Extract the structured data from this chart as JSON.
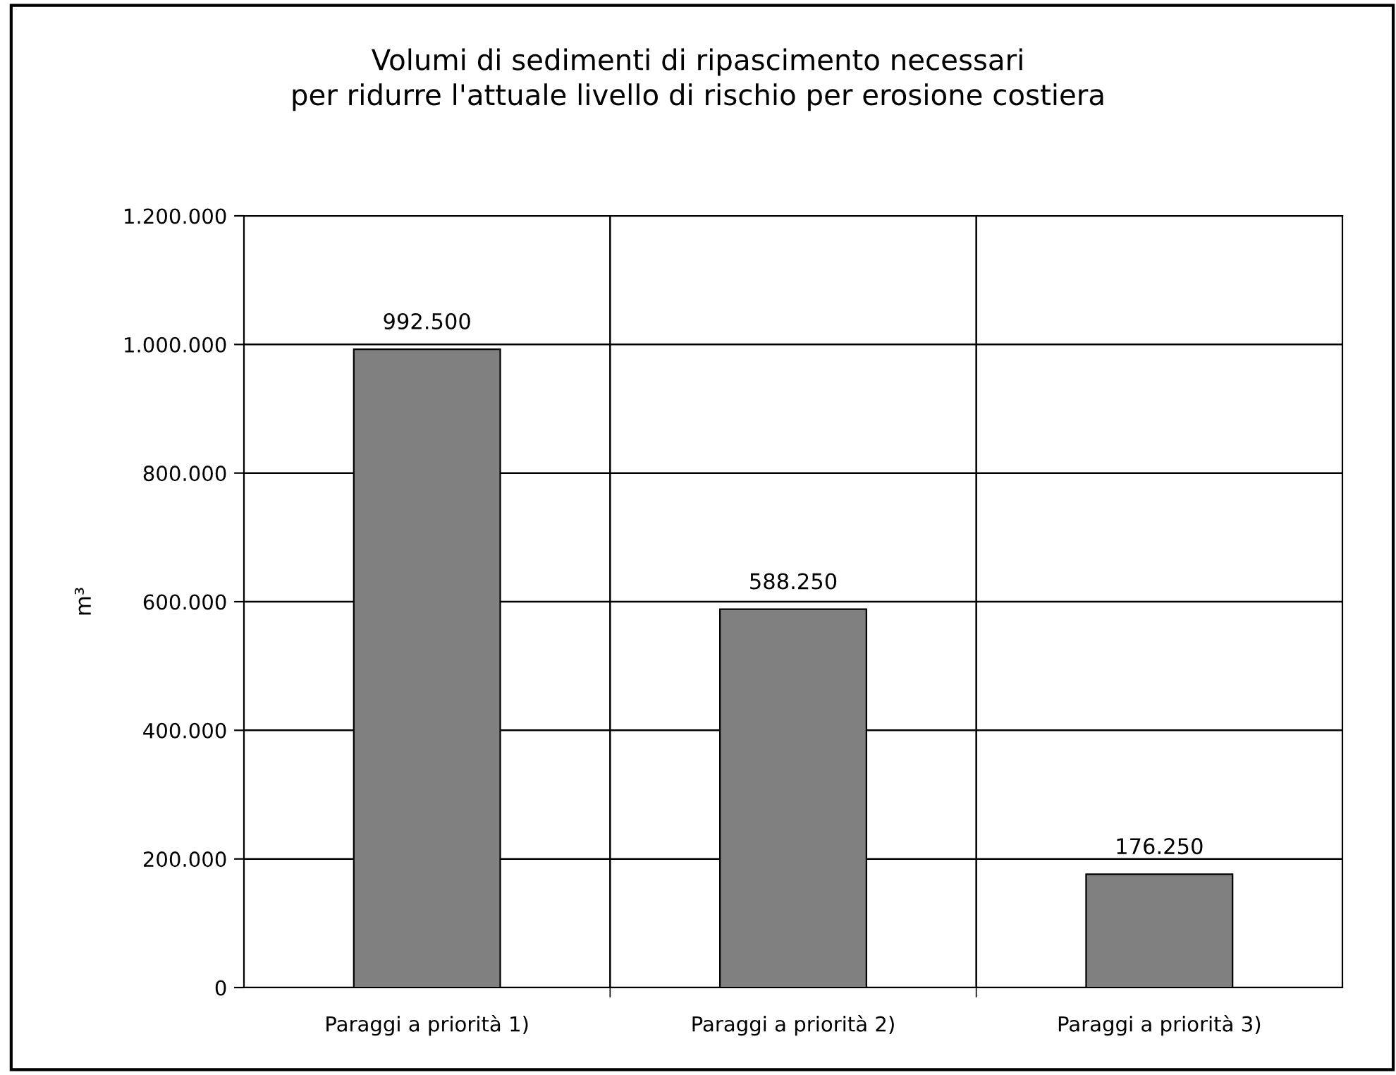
{
  "chart_data": {
    "type": "bar",
    "title": "Volumi di sedimenti di ripascimento necessari\nper ridurre l'attuale livello di rischio per erosione costiera",
    "ylabel": "m³",
    "categories": [
      "Paraggi a priorità 1)",
      "Paraggi a priorità 2)",
      "Paraggi a priorità 3)"
    ],
    "values": [
      992500,
      588250,
      176250
    ],
    "color": "#808080",
    "value_labels": [
      "992.500",
      "588.250",
      "176.250"
    ],
    "ylim": [
      0,
      1200000
    ],
    "yticks": [
      {
        "value": 0,
        "label": "0"
      },
      {
        "value": 200000,
        "label": "200.000"
      },
      {
        "value": 400000,
        "label": "400.000"
      },
      {
        "value": 600000,
        "label": "600.000"
      },
      {
        "value": 800000,
        "label": "800.000"
      },
      {
        "value": 1000000,
        "label": "1.000.000"
      },
      {
        "value": 1200000,
        "label": "1.200.000"
      }
    ],
    "grid": true,
    "legend": false
  }
}
